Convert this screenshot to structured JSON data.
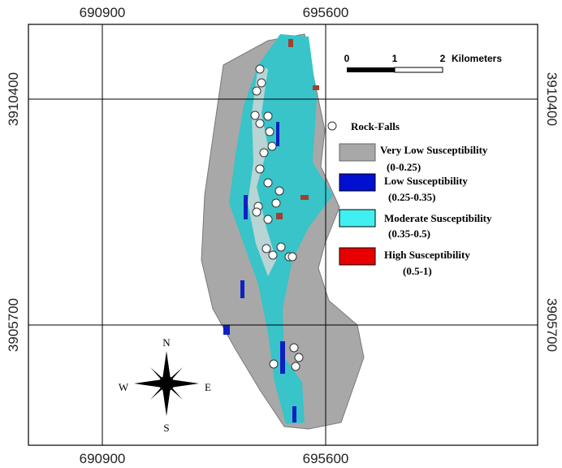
{
  "grid": {
    "x_labels": [
      "690900",
      "695600"
    ],
    "y_labels": [
      "3910400",
      "3905700"
    ]
  },
  "scale_bar": {
    "ticks": [
      "0",
      "1",
      "2"
    ],
    "unit": "Kilometers"
  },
  "legend": {
    "points": "Rock-Falls",
    "items": [
      {
        "label": "Very Low Susceptibility",
        "range": "(0-0.25)"
      },
      {
        "label": "Low Susceptibility",
        "range": "(0.25-0.35)"
      },
      {
        "label": "Moderate Susceptibility",
        "range": "(0.35-0.5)"
      },
      {
        "label": "High Susceptibility",
        "range": "(0.5-1)"
      }
    ]
  },
  "compass": {
    "n": "N",
    "s": "S",
    "e": "E",
    "w": "W"
  }
}
